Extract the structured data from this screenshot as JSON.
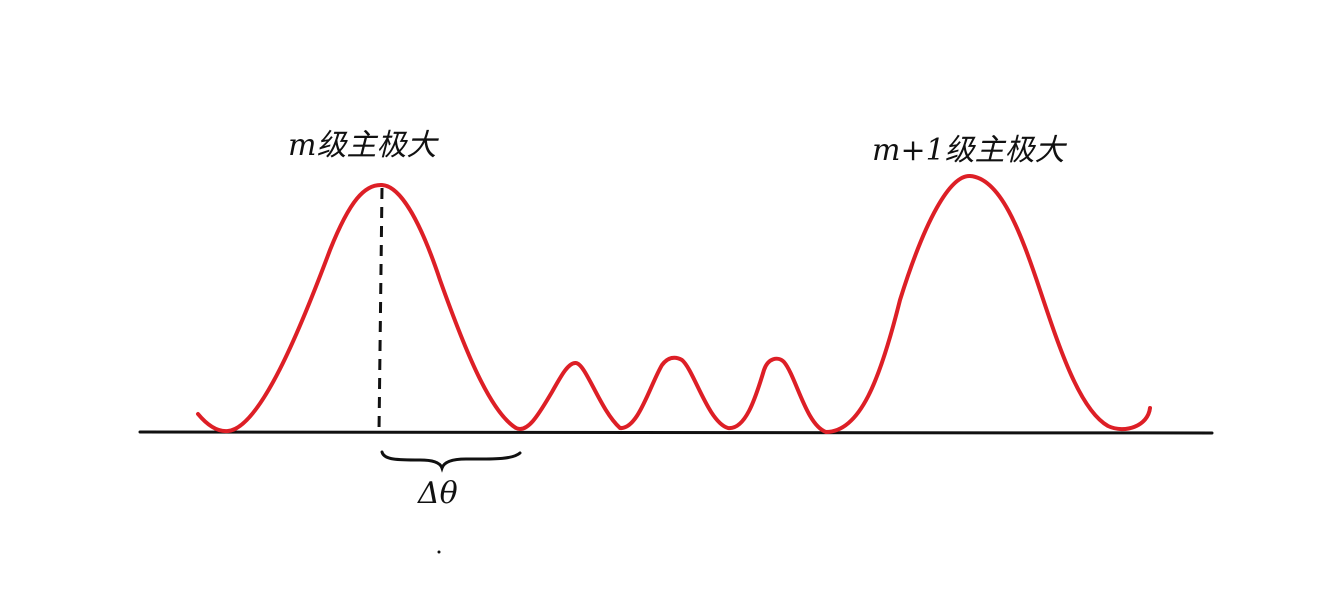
{
  "labels": {
    "peak_m": "m级主极大",
    "peak_m1": "m+1级主极大",
    "angular_width": "Δθ"
  },
  "colors": {
    "curve": "#dd1f26",
    "axis": "#111111",
    "annotation": "#111111",
    "background": "#ffffff"
  }
}
